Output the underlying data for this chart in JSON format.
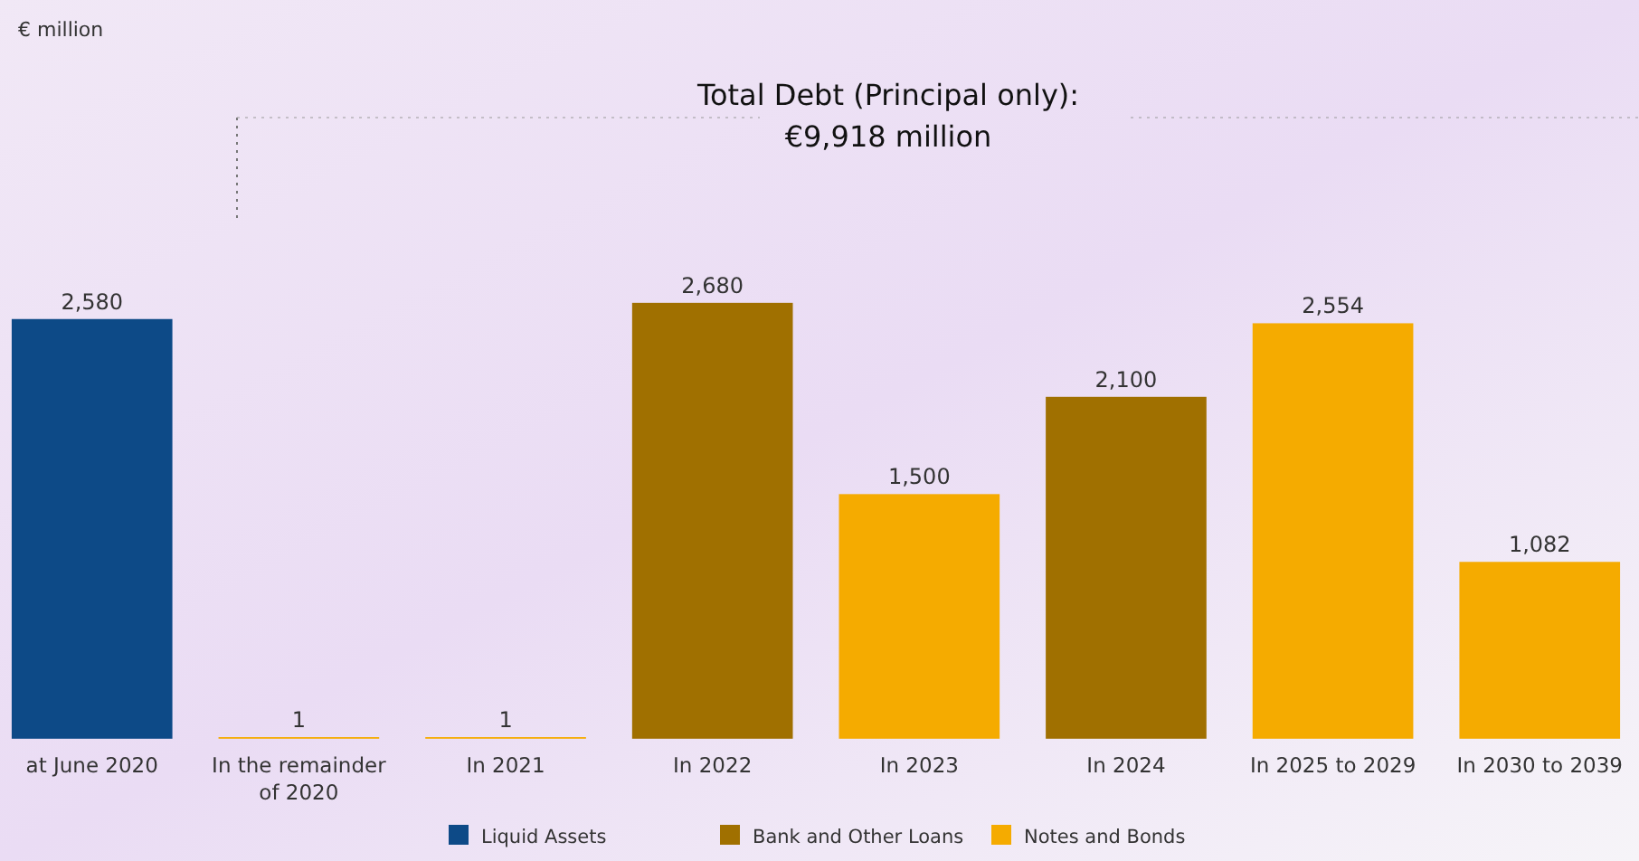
{
  "chart_data": {
    "type": "bar",
    "title": "Total Debt (Principal only):",
    "subtitle": "€9,918 million",
    "annotations": [
      "€ million"
    ],
    "categories": [
      "at June 2020",
      "In the remainder of 2020",
      "In 2021",
      "In 2022",
      "In 2023",
      "In 2024",
      "In 2025 to 2029",
      "In 2030 to 2039"
    ],
    "legend": "bottom",
    "series": [
      {
        "name": "Liquid Assets",
        "color": "#0d4a87",
        "values": [
          2580,
          null,
          null,
          null,
          null,
          null,
          null,
          null
        ],
        "value_labels": [
          "2,580",
          null,
          null,
          null,
          null,
          null,
          null,
          null
        ]
      },
      {
        "name": "Bank and Other Loans",
        "color": "#a07000",
        "values": [
          null,
          null,
          null,
          2680,
          null,
          2100,
          null,
          null
        ],
        "value_labels": [
          null,
          null,
          null,
          "2,680",
          null,
          "2,100",
          null,
          null
        ]
      },
      {
        "name": "Notes and Bonds",
        "color": "#f5ab00",
        "values": [
          null,
          1,
          1,
          null,
          1500,
          null,
          2554,
          1082
        ],
        "value_labels": [
          null,
          "1",
          "1",
          null,
          "1,500",
          null,
          "2,554",
          "1,082"
        ]
      }
    ]
  }
}
